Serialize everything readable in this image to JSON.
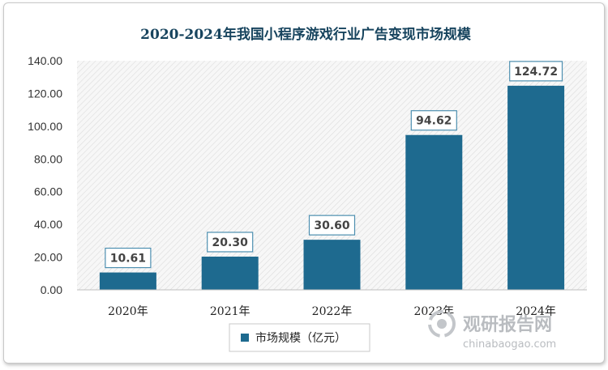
{
  "colors": {
    "bar": "#1e6a8f",
    "title": "#17445e",
    "label_border": "#4d8fb0"
  },
  "watermark": {
    "logo_icon": "chinabaogao-logo-icon",
    "text_cn": "观研报告网",
    "text_en": "chinabaogao.com"
  },
  "chart_data": {
    "type": "bar",
    "title": "2020-2024年我国小程序游戏行业广告变现市场规模",
    "categories": [
      "2020年",
      "2021年",
      "2022年",
      "2023年",
      "2024年"
    ],
    "series": [
      {
        "name": "市场规模（亿元）",
        "values": [
          10.61,
          20.3,
          30.6,
          94.62,
          124.72
        ]
      }
    ],
    "data_labels": [
      "10.61",
      "20.30",
      "30.60",
      "94.62",
      "124.72"
    ],
    "ylim": [
      0,
      140
    ],
    "yticks": [
      "0.00",
      "20.00",
      "40.00",
      "60.00",
      "80.00",
      "100.00",
      "120.00",
      "140.00"
    ],
    "xlabel": "",
    "ylabel": "",
    "grid": false,
    "legend_position": "bottom"
  }
}
